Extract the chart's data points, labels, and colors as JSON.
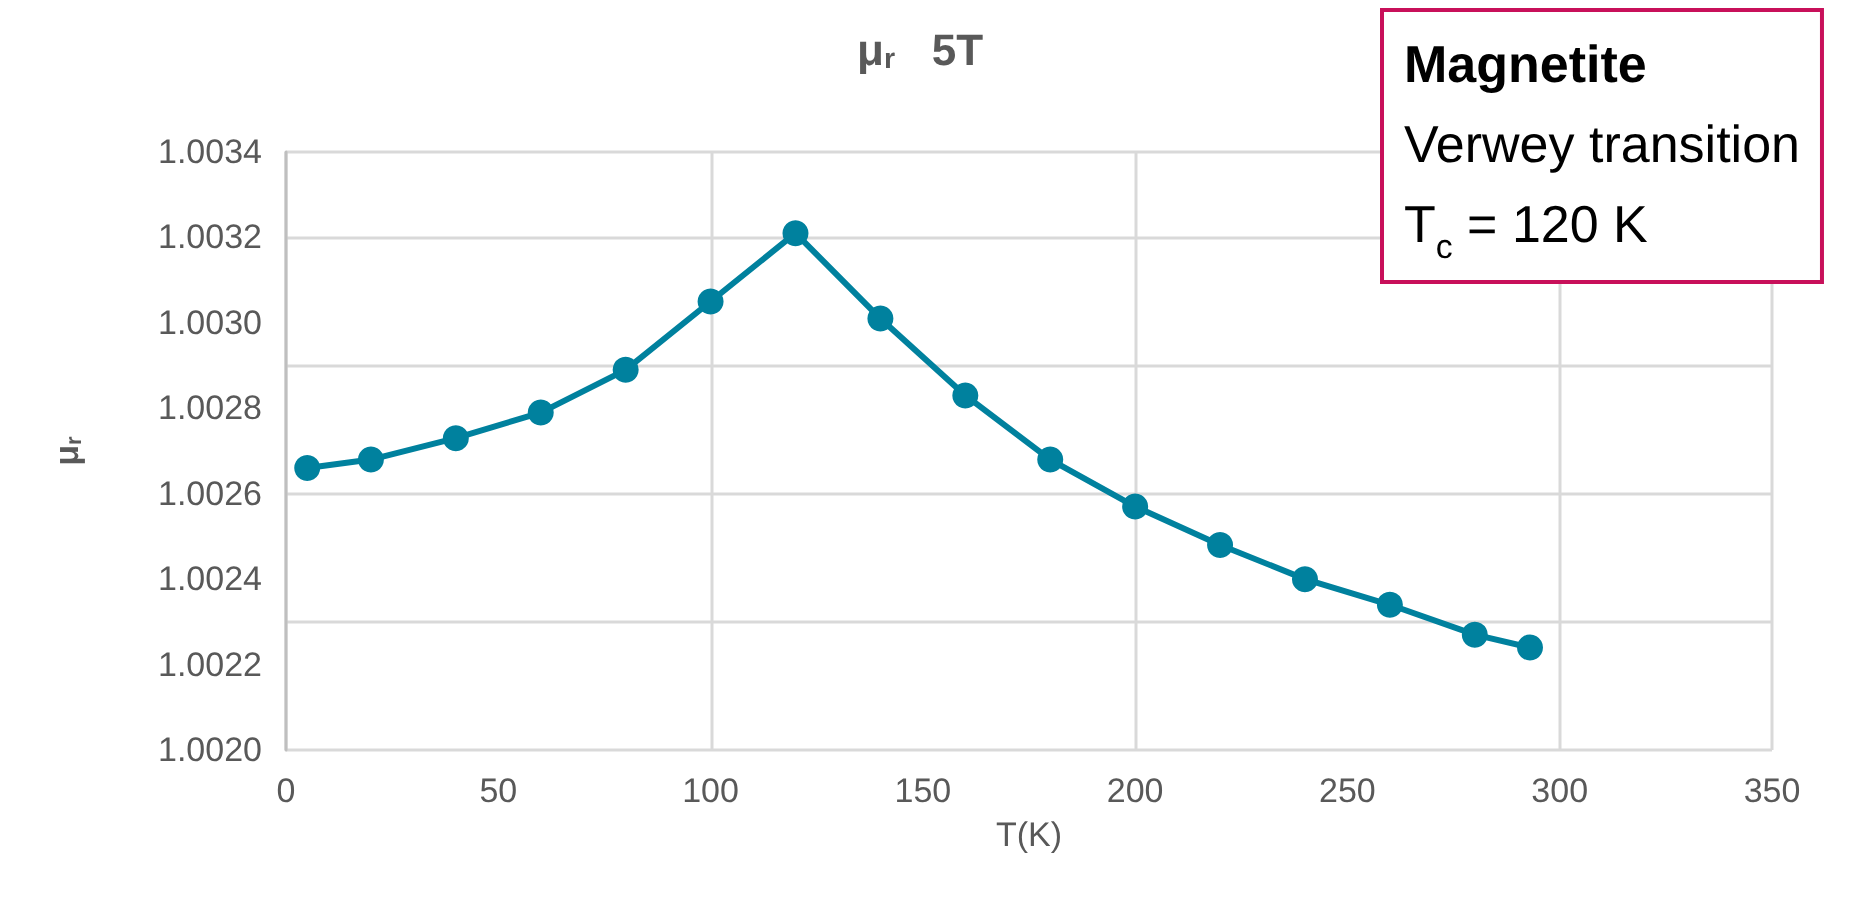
{
  "chart_data": {
    "type": "line",
    "title": "μ$_{r}$   5T",
    "xlabel": "T(K)",
    "ylabel": "μ$_{r}$",
    "annotations": [
      "Magnetite",
      "Verwey transition",
      "T$_{c}$ = 120 K"
    ],
    "x": [
      5,
      20,
      40,
      60,
      80,
      100,
      120,
      140,
      160,
      180,
      200,
      220,
      240,
      260,
      280,
      293
    ],
    "series": [
      {
        "color": "#00819e",
        "values": [
          1.00266,
          1.00268,
          1.00273,
          1.00279,
          1.00289,
          1.00305,
          1.00321,
          1.00301,
          1.00283,
          1.00268,
          1.00257,
          1.00248,
          1.0024,
          1.00234,
          1.00227,
          1.00224
        ]
      }
    ],
    "xlim": [
      0,
      350
    ],
    "xticks": [
      0,
      50,
      100,
      150,
      200,
      250,
      300,
      350
    ],
    "ylim": [
      1.002,
      1.0034
    ],
    "yticks": [
      {
        "value": 1.002,
        "label": "1.0020"
      },
      {
        "value": 1.0022,
        "label": "1.0022"
      },
      {
        "value": 1.0024,
        "label": "1.0024"
      },
      {
        "value": 1.0026,
        "label": "1.0026"
      },
      {
        "value": 1.0028,
        "label": "1.0028"
      },
      {
        "value": 1.003,
        "label": "1.0030"
      },
      {
        "value": 1.0032,
        "label": "1.0032"
      },
      {
        "value": 1.0034,
        "label": "1.0034"
      }
    ],
    "grid": true,
    "marker": "circle",
    "line_style": "solid"
  }
}
